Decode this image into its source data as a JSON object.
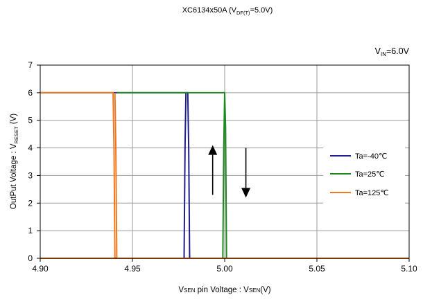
{
  "chart_data": {
    "type": "line",
    "title": {
      "main": "XC6134x50A (V",
      "sub": "DF(T)",
      "tail": "=5.0V)"
    },
    "annotation": {
      "main": "V",
      "sub": "IN",
      "tail": "=6.0V"
    },
    "xlabel": {
      "v1": "V",
      "s1": "SEN",
      "mid": " pin Voltage : V",
      "s2": "SEN",
      "tail": "(V)"
    },
    "ylabel": {
      "main": "OutPut Voltage : V",
      "sub": "RESET",
      "tail": " (V)"
    },
    "xlim": [
      4.9,
      5.1
    ],
    "ylim": [
      0,
      7
    ],
    "xticks": [
      {
        "value": 4.9,
        "label": "4.90"
      },
      {
        "value": 4.95,
        "label": "4.95"
      },
      {
        "value": 5.0,
        "label": "5.00"
      },
      {
        "value": 5.05,
        "label": "5.05"
      },
      {
        "value": 5.1,
        "label": "5.10"
      }
    ],
    "yticks": [
      {
        "value": 0,
        "label": "0"
      },
      {
        "value": 1,
        "label": "1"
      },
      {
        "value": 2,
        "label": "2"
      },
      {
        "value": 3,
        "label": "3"
      },
      {
        "value": 4,
        "label": "4"
      },
      {
        "value": 5,
        "label": "5"
      },
      {
        "value": 6,
        "label": "6"
      },
      {
        "value": 7,
        "label": "7"
      }
    ],
    "grid": true,
    "legend_position": "right",
    "series": [
      {
        "name": "Ta=-40℃",
        "color": "#1f1f8f",
        "lines": [
          [
            [
              4.979,
              6
            ],
            [
              4.9785,
              4
            ],
            [
              4.978,
              0
            ],
            [
              4.9,
              0
            ]
          ],
          [
            [
              4.9,
              6
            ],
            [
              4.98,
              6
            ],
            [
              4.9805,
              4
            ],
            [
              4.981,
              0
            ],
            [
              5.1,
              0
            ]
          ]
        ]
      },
      {
        "name": "Ta=25℃",
        "color": "#1e8a1e",
        "lines": [
          [
            [
              4.9415,
              6
            ],
            [
              5.0,
              6
            ],
            [
              5.0005,
              4.7
            ],
            [
              5.001,
              0
            ],
            [
              5.1,
              0
            ]
          ],
          [
            [
              5.0,
              6
            ],
            [
              4.9995,
              4
            ],
            [
              4.999,
              0
            ]
          ]
        ]
      },
      {
        "name": "Ta=125℃",
        "color": "#f07820",
        "lines": [
          [
            [
              4.9,
              6
            ],
            [
              4.9395,
              6
            ],
            [
              4.94,
              4
            ],
            [
              4.9405,
              0
            ],
            [
              4.9,
              0
            ]
          ],
          [
            [
              4.9405,
              6
            ],
            [
              4.941,
              4
            ],
            [
              4.9415,
              0
            ],
            [
              5.1,
              0
            ]
          ]
        ]
      }
    ],
    "arrows": [
      {
        "direction": "up",
        "x": 4.9935,
        "y_from": 2.3,
        "y_to": 4.1
      },
      {
        "direction": "down",
        "x": 5.0115,
        "y_from": 4.0,
        "y_to": 2.2
      }
    ]
  }
}
